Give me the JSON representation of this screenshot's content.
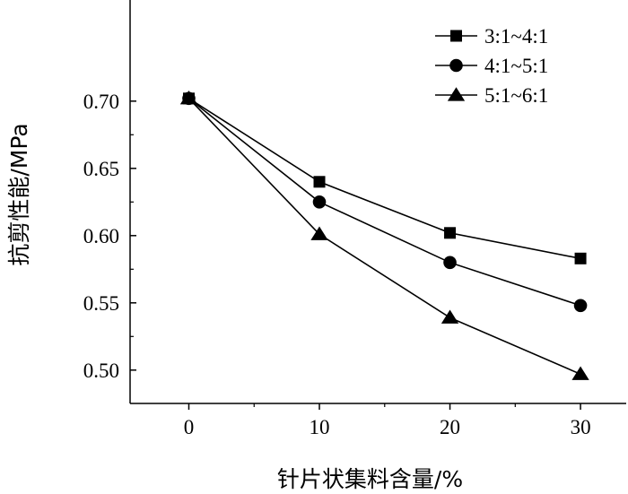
{
  "chart_data": {
    "type": "line",
    "xlabel": "针片状集料含量/%",
    "ylabel": "抗剪性能/MPa",
    "x": [
      0,
      10,
      20,
      30
    ],
    "x_ticks": [
      "0",
      "10",
      "20",
      "30"
    ],
    "y_ticks": [
      "0.50",
      "0.55",
      "0.60",
      "0.65",
      "0.70"
    ],
    "xlim": [
      -4.5,
      33.5
    ],
    "ylim": [
      0.4752,
      0.7752
    ],
    "grid": false,
    "legend_position": "top-right",
    "series": [
      {
        "name": "3:1~4:1",
        "marker": "square",
        "values": [
          0.702,
          0.64,
          0.602,
          0.583
        ]
      },
      {
        "name": "4:1~5:1",
        "marker": "circle",
        "values": [
          0.702,
          0.625,
          0.58,
          0.548
        ]
      },
      {
        "name": "5:1~6:1",
        "marker": "triangle",
        "values": [
          0.702,
          0.601,
          0.539,
          0.497
        ]
      }
    ]
  }
}
